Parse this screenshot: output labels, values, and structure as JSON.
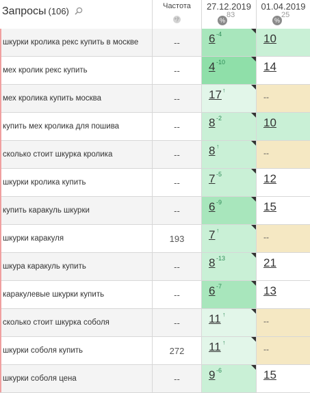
{
  "header": {
    "title": "Запросы",
    "count": "(106)",
    "freq_label": "Частота",
    "date1": "27.12.2019",
    "date1_pct": "83",
    "date2": "01.04.2019",
    "date2_pct": "25",
    "pct_symbol": "%"
  },
  "colors": {
    "green_dark": "#8fdfa9",
    "green_mid": "#a8e6bc",
    "green_light": "#c9f0d6",
    "green_pale": "#e2f6e9",
    "beige": "#f5e8c3",
    "white": "#ffffff"
  },
  "rows": [
    {
      "query": "шкурки кролика рекс купить в москве",
      "freq": "--",
      "d1": {
        "pos": "6",
        "chg": "-4",
        "bg": "#a8e6bc"
      },
      "d2": {
        "pos": "10",
        "bg": "#c9f0d6"
      }
    },
    {
      "query": "мех кролик рекс купить",
      "freq": "--",
      "d1": {
        "pos": "4",
        "chg": "-10",
        "bg": "#8fdfa9"
      },
      "d2": {
        "pos": "14",
        "bg": "#ffffff"
      }
    },
    {
      "query": "мех кролика купить москва",
      "freq": "--",
      "d1": {
        "pos": "17",
        "chg": "↑",
        "bg": "#e2f6e9"
      },
      "d2": {
        "pos": "--",
        "bg": "#f5e8c3"
      }
    },
    {
      "query": "купить мех кролика для пошива",
      "freq": "--",
      "d1": {
        "pos": "8",
        "chg": "-2",
        "bg": "#c9f0d6"
      },
      "d2": {
        "pos": "10",
        "bg": "#c9f0d6"
      }
    },
    {
      "query": "сколько стоит шкурка кролика",
      "freq": "--",
      "d1": {
        "pos": "8",
        "chg": "↑",
        "bg": "#c9f0d6"
      },
      "d2": {
        "pos": "--",
        "bg": "#f5e8c3"
      }
    },
    {
      "query": "шкурки кролика купить",
      "freq": "--",
      "d1": {
        "pos": "7",
        "chg": "-5",
        "bg": "#c9f0d6"
      },
      "d2": {
        "pos": "12",
        "bg": "#ffffff"
      }
    },
    {
      "query": "купить каракуль шкурки",
      "freq": "--",
      "d1": {
        "pos": "6",
        "chg": "-9",
        "bg": "#a8e6bc"
      },
      "d2": {
        "pos": "15",
        "bg": "#ffffff"
      }
    },
    {
      "query": "шкурки каракуля",
      "freq": "193",
      "d1": {
        "pos": "7",
        "chg": "↑",
        "bg": "#c9f0d6"
      },
      "d2": {
        "pos": "--",
        "bg": "#f5e8c3"
      }
    },
    {
      "query": "шкура каракуль купить",
      "freq": "--",
      "d1": {
        "pos": "8",
        "chg": "-13",
        "bg": "#c9f0d6"
      },
      "d2": {
        "pos": "21",
        "bg": "#ffffff"
      }
    },
    {
      "query": "каракулевые шкурки купить",
      "freq": "--",
      "d1": {
        "pos": "6",
        "chg": "-7",
        "bg": "#a8e6bc"
      },
      "d2": {
        "pos": "13",
        "bg": "#ffffff"
      }
    },
    {
      "query": "сколько стоит шкурка соболя",
      "freq": "--",
      "d1": {
        "pos": "11",
        "chg": "↑",
        "bg": "#e2f6e9"
      },
      "d2": {
        "pos": "--",
        "bg": "#f5e8c3"
      }
    },
    {
      "query": "шкурки соболя купить",
      "freq": "272",
      "d1": {
        "pos": "11",
        "chg": "↑",
        "bg": "#e2f6e9"
      },
      "d2": {
        "pos": "--",
        "bg": "#f5e8c3"
      }
    },
    {
      "query": "шкурки соболя цена",
      "freq": "--",
      "d1": {
        "pos": "9",
        "chg": "-6",
        "bg": "#c9f0d6"
      },
      "d2": {
        "pos": "15",
        "bg": "#ffffff"
      }
    }
  ]
}
